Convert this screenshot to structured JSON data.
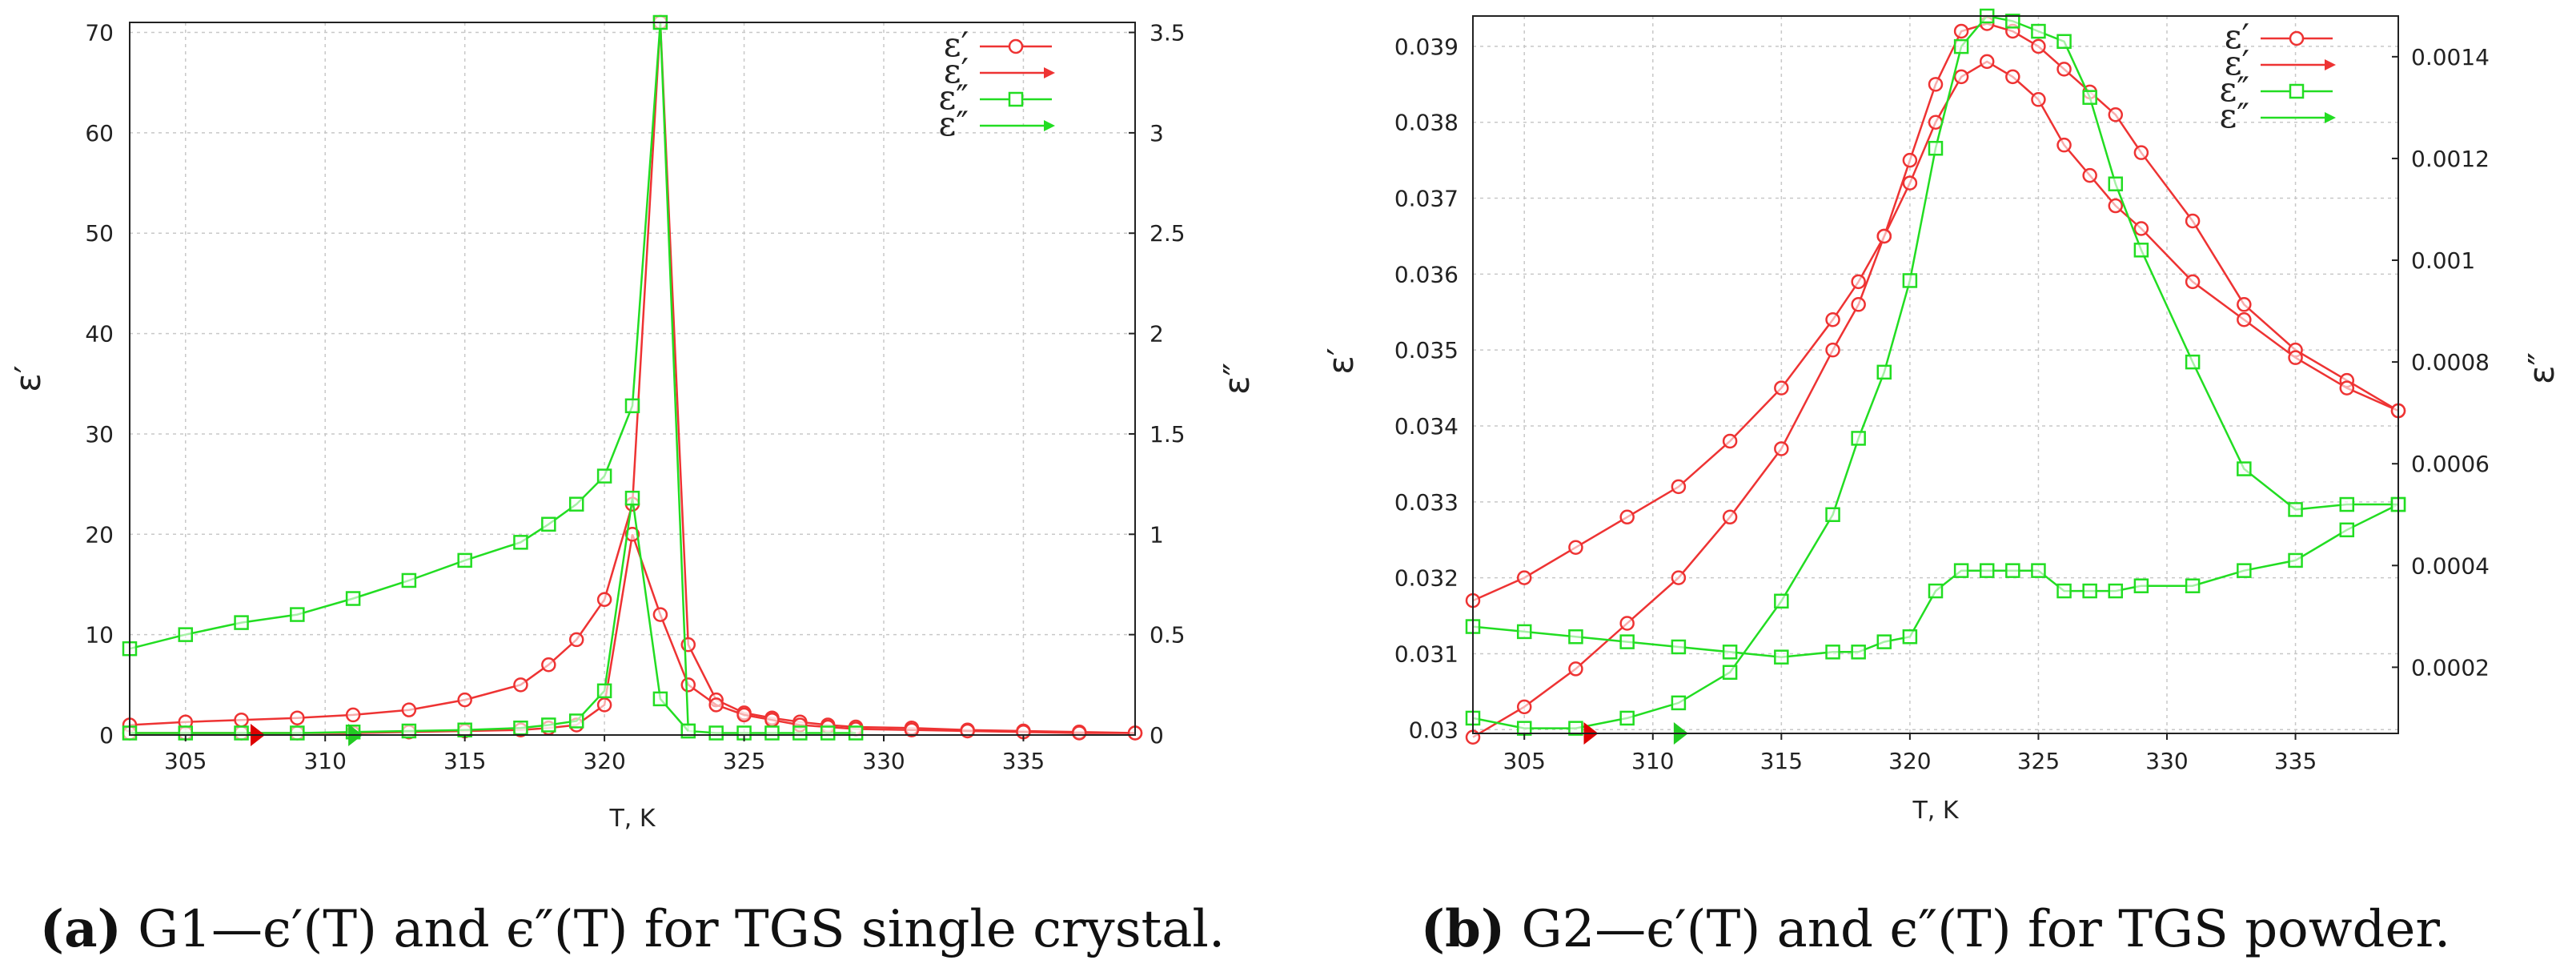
{
  "colors": {
    "eps_real": "#ee3333",
    "eps_imag": "#22dd22",
    "grid": "#c8c8c8",
    "frame": "#222222",
    "marker_red": "#dd0000",
    "marker_green": "#22cc22"
  },
  "chart_data": [
    {
      "type": "line",
      "xlabel": "T, K",
      "ylabel_left": "ε′",
      "ylabel_right": "ε″",
      "xlim": [
        303,
        339
      ],
      "ylim_left": [
        0,
        71
      ],
      "ylim_right": [
        0,
        3.55
      ],
      "xticks": [
        305,
        310,
        315,
        320,
        325,
        330,
        335
      ],
      "yticks_left": [
        0,
        10,
        20,
        30,
        40,
        50,
        60,
        70
      ],
      "yticks_right": [
        0,
        0.5,
        1,
        1.5,
        2,
        2.5,
        3,
        3.5
      ],
      "grid": true,
      "legend": {
        "position": "top-right",
        "entries": [
          "ε′",
          "ε′",
          "ε″",
          "ε″"
        ]
      },
      "caption_label": "(a)",
      "caption_text": " G1—ϵ′(T) and ϵ″(T) for TGS single crystal.",
      "start_markers": {
        "red_x": 307.5,
        "green_x": 311
      },
      "series": [
        {
          "name": "ε′",
          "axis": "left",
          "color_key": "eps_real",
          "marker": "circle",
          "x": [
            303,
            305,
            307,
            309,
            311,
            313,
            315,
            317,
            318,
            319,
            320,
            321,
            322,
            323,
            324,
            325,
            326,
            327,
            328,
            329,
            331,
            333,
            335,
            337,
            339
          ],
          "y": [
            1,
            1.3,
            1.5,
            1.7,
            2,
            2.5,
            3.5,
            5,
            7,
            9.5,
            13.5,
            23,
            71,
            9,
            3.5,
            2.2,
            1.7,
            1.3,
            1,
            0.8,
            0.7,
            0.5,
            0.4,
            0.3,
            0.2
          ]
        },
        {
          "name": "ε′",
          "axis": "left",
          "color_key": "eps_real",
          "marker": "circle",
          "x": [
            303,
            305,
            307,
            309,
            311,
            313,
            315,
            317,
            318,
            319,
            320,
            321,
            322,
            323,
            324,
            325,
            326,
            327,
            328,
            329,
            331,
            333,
            335,
            337,
            339
          ],
          "y": [
            0.2,
            0.2,
            0.2,
            0.2,
            0.2,
            0.3,
            0.4,
            0.5,
            0.7,
            1,
            3,
            20,
            12,
            5,
            3,
            2,
            1.5,
            1,
            0.8,
            0.6,
            0.5,
            0.4,
            0.3,
            0.2,
            0.2
          ]
        },
        {
          "name": "ε″",
          "axis": "right",
          "color_key": "eps_imag",
          "marker": "square",
          "x": [
            303,
            305,
            307,
            309,
            311,
            313,
            315,
            317,
            318,
            319,
            320,
            321,
            322,
            323,
            324,
            325,
            326,
            327,
            328,
            329
          ],
          "y": [
            0.43,
            0.5,
            0.56,
            0.6,
            0.68,
            0.77,
            0.87,
            0.96,
            1.05,
            1.15,
            1.29,
            1.64,
            3.55,
            0.02,
            0.01,
            0.01,
            0.01,
            0.01,
            0.01,
            0.01
          ]
        },
        {
          "name": "ε″",
          "axis": "right",
          "color_key": "eps_imag",
          "marker": "square",
          "x": [
            303,
            305,
            307,
            309,
            311,
            313,
            315,
            317,
            318,
            319,
            320,
            321,
            322,
            323
          ],
          "y": [
            0.01,
            0.01,
            0.01,
            0.01,
            0.015,
            0.02,
            0.025,
            0.035,
            0.05,
            0.07,
            0.22,
            1.18,
            0.18,
            0.02
          ]
        }
      ]
    },
    {
      "type": "line",
      "xlabel": "T, K",
      "ylabel_left": "ε′",
      "ylabel_right": "ε″",
      "xlim": [
        303,
        339
      ],
      "ylim_left": [
        0.02995,
        0.0394
      ],
      "ylim_right": [
        7e-05,
        0.00148
      ],
      "xticks": [
        305,
        310,
        315,
        320,
        325,
        330,
        335
      ],
      "yticks_left": [
        0.03,
        0.031,
        0.032,
        0.033,
        0.034,
        0.035,
        0.036,
        0.037,
        0.038,
        0.039
      ],
      "yticks_left_labels": [
        "0.03",
        "0.031",
        "0.032",
        "0.033",
        "0.034",
        "0.035",
        "0.036",
        "0.037",
        "0.038",
        "0.039"
      ],
      "yticks_right": [
        0.0002,
        0.0004,
        0.0006,
        0.0008,
        0.001,
        0.0012,
        0.0014
      ],
      "yticks_right_labels": [
        "0.0002",
        "0.0004",
        "0.0006",
        "0.0008",
        "0.001",
        "0.0012",
        "0.0014"
      ],
      "grid": true,
      "legend": {
        "position": "top-right",
        "entries": [
          "ε′",
          "ε′",
          "ε″",
          "ε″"
        ]
      },
      "caption_label": "(b)",
      "caption_text": " G2—ϵ′(T) and ϵ″(T) for TGS powder.",
      "start_markers": {
        "red_x": 307.5,
        "green_x": 311
      },
      "series": [
        {
          "name": "ε′",
          "axis": "left",
          "color_key": "eps_real",
          "marker": "circle",
          "x": [
            303,
            305,
            307,
            309,
            311,
            313,
            315,
            317,
            318,
            319,
            320,
            321,
            322,
            323,
            324,
            325,
            326,
            327,
            328,
            329,
            331,
            333,
            335,
            337,
            339
          ],
          "y": [
            0.0317,
            0.032,
            0.0324,
            0.0328,
            0.0332,
            0.0338,
            0.0345,
            0.0354,
            0.0359,
            0.0365,
            0.0375,
            0.0385,
            0.0392,
            0.0393,
            0.0392,
            0.039,
            0.0387,
            0.0384,
            0.0381,
            0.0376,
            0.0367,
            0.0356,
            0.035,
            0.0346,
            0.0342
          ]
        },
        {
          "name": "ε′",
          "axis": "left",
          "color_key": "eps_real",
          "marker": "circle",
          "x": [
            303,
            305,
            307,
            309,
            311,
            313,
            315,
            317,
            318,
            319,
            320,
            321,
            322,
            323,
            324,
            325,
            326,
            327,
            328,
            329,
            331,
            333,
            335,
            337,
            339
          ],
          "y": [
            0.0299,
            0.0303,
            0.0308,
            0.0314,
            0.032,
            0.0328,
            0.0337,
            0.035,
            0.0356,
            0.0365,
            0.0372,
            0.038,
            0.0386,
            0.0388,
            0.0386,
            0.0383,
            0.0377,
            0.0373,
            0.0369,
            0.0366,
            0.0359,
            0.0354,
            0.0349,
            0.0345,
            0.0342
          ]
        },
        {
          "name": "ε″",
          "axis": "right",
          "color_key": "eps_imag",
          "marker": "square",
          "x": [
            303,
            305,
            307,
            309,
            311,
            313,
            315,
            317,
            318,
            319,
            320,
            321,
            322,
            323,
            324,
            325,
            326,
            327,
            328,
            329,
            331,
            333,
            335,
            337,
            339
          ],
          "y": [
            0.00028,
            0.00027,
            0.00026,
            0.00025,
            0.00024,
            0.00023,
            0.00022,
            0.00023,
            0.00023,
            0.00025,
            0.00026,
            0.00035,
            0.00039,
            0.00039,
            0.00039,
            0.00039,
            0.00035,
            0.00035,
            0.00035,
            0.00036,
            0.00036,
            0.00039,
            0.00041,
            0.00047,
            0.00052
          ]
        },
        {
          "name": "ε″",
          "axis": "right",
          "color_key": "eps_imag",
          "marker": "square",
          "x": [
            303,
            305,
            307,
            309,
            311,
            313,
            315,
            317,
            318,
            319,
            320,
            321,
            322,
            323,
            324,
            325,
            326,
            327,
            328,
            329,
            331,
            333,
            335,
            337,
            339
          ],
          "y": [
            0.0001,
            8e-05,
            8e-05,
            0.0001,
            0.00013,
            0.00019,
            0.00033,
            0.0005,
            0.00065,
            0.00078,
            0.00096,
            0.00122,
            0.00142,
            0.00148,
            0.00147,
            0.00145,
            0.00143,
            0.00132,
            0.00115,
            0.00102,
            0.0008,
            0.00059,
            0.00051,
            0.00052,
            0.00052
          ]
        }
      ]
    }
  ]
}
